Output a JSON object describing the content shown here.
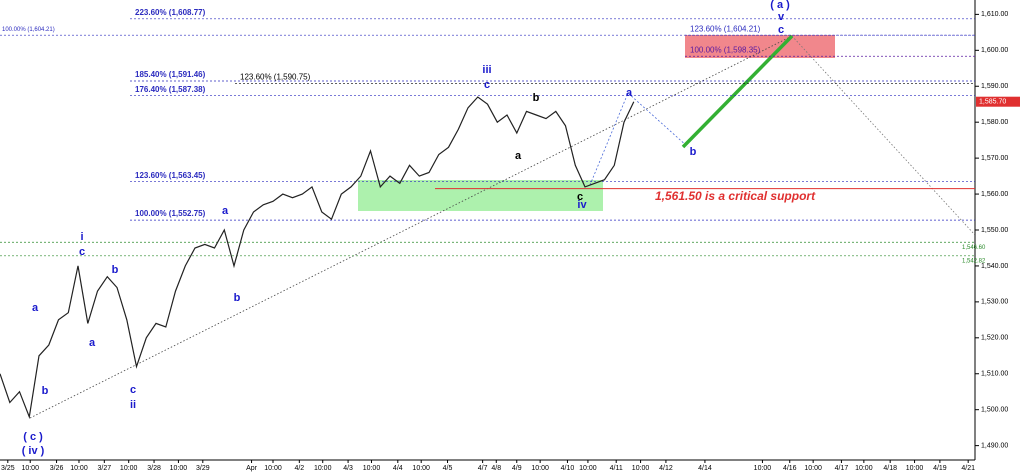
{
  "chart_data": {
    "type": "line",
    "color": "#222222",
    "x": [
      0,
      1,
      2,
      3,
      4,
      5,
      6,
      7,
      8,
      9,
      10,
      11,
      12,
      13,
      14,
      15,
      16,
      17,
      18,
      19,
      20,
      21,
      22,
      23,
      24,
      25,
      26,
      27,
      28,
      29,
      30,
      31,
      32,
      33,
      34,
      35,
      36,
      37,
      38,
      39,
      40,
      41,
      42,
      43,
      44,
      45,
      46,
      47,
      48,
      49,
      50,
      51,
      52,
      53,
      54,
      55,
      56,
      57,
      58,
      59,
      60,
      61,
      62,
      63,
      64,
      65
    ],
    "values": [
      1510,
      1502,
      1505,
      1498,
      1515,
      1518,
      1525,
      1527,
      1540,
      1524,
      1533,
      1537,
      1534,
      1525,
      1512,
      1520,
      1524,
      1523,
      1533,
      1540,
      1545,
      1546,
      1545,
      1550,
      1540,
      1550,
      1555,
      1557,
      1558,
      1560,
      1559,
      1560,
      1562,
      1555,
      1553,
      1560,
      1562,
      1565,
      1572,
      1562,
      1565,
      1563,
      1568,
      1565,
      1566,
      1571,
      1573,
      1578,
      1584,
      1587,
      1585,
      1580,
      1582,
      1577,
      1583,
      1582,
      1581,
      1583,
      1579,
      1568,
      1562,
      1563,
      1564,
      1568,
      1580,
      1585.7
    ],
    "xlim": [
      0,
      100
    ],
    "xticks": [
      {
        "value": 0.8,
        "label": "3/25"
      },
      {
        "value": 3.1,
        "label": "10:00"
      },
      {
        "value": 5.8,
        "label": "3/26"
      },
      {
        "value": 8.1,
        "label": "10:00"
      },
      {
        "value": 10.7,
        "label": "3/27"
      },
      {
        "value": 13.2,
        "label": "10:00"
      },
      {
        "value": 15.8,
        "label": "3/28"
      },
      {
        "value": 18.3,
        "label": "10:00"
      },
      {
        "value": 20.8,
        "label": "3/29"
      },
      {
        "value": 25.8,
        "label": "Apr"
      },
      {
        "value": 28.0,
        "label": "10:00"
      },
      {
        "value": 30.7,
        "label": "4/2"
      },
      {
        "value": 33.1,
        "label": "10:00"
      },
      {
        "value": 35.7,
        "label": "4/3"
      },
      {
        "value": 38.1,
        "label": "10:00"
      },
      {
        "value": 40.8,
        "label": "4/4"
      },
      {
        "value": 43.2,
        "label": "10:00"
      },
      {
        "value": 45.9,
        "label": "4/5"
      },
      {
        "value": 49.5,
        "label": "4/7"
      },
      {
        "value": 50.9,
        "label": "4/8"
      },
      {
        "value": 53.0,
        "label": "4/9"
      },
      {
        "value": 55.4,
        "label": "10:00"
      },
      {
        "value": 58.2,
        "label": "4/10"
      },
      {
        "value": 60.3,
        "label": "10:00"
      },
      {
        "value": 63.2,
        "label": "4/11"
      },
      {
        "value": 65.7,
        "label": "10:00"
      },
      {
        "value": 68.3,
        "label": "4/12"
      },
      {
        "value": 72.3,
        "label": "4/14"
      },
      {
        "value": 78.2,
        "label": "10:00"
      },
      {
        "value": 81.0,
        "label": "4/16"
      },
      {
        "value": 83.4,
        "label": "10:00"
      },
      {
        "value": 86.3,
        "label": "4/17"
      },
      {
        "value": 88.6,
        "label": "10:00"
      },
      {
        "value": 91.3,
        "label": "4/18"
      },
      {
        "value": 93.8,
        "label": "10:00"
      },
      {
        "value": 96.4,
        "label": "4/19"
      },
      {
        "value": 99.3,
        "label": "4/21"
      }
    ],
    "ylim": [
      1486,
      1614
    ],
    "yticks": [
      {
        "value": 1490,
        "label": "1,490.00"
      },
      {
        "value": 1500,
        "label": "1,500.00"
      },
      {
        "value": 1510,
        "label": "1,510.00"
      },
      {
        "value": 1520,
        "label": "1,520.00"
      },
      {
        "value": 1530,
        "label": "1,530.00"
      },
      {
        "value": 1540,
        "label": "1,540.00"
      },
      {
        "value": 1550,
        "label": "1,550.00"
      },
      {
        "value": 1560,
        "label": "1,560.00"
      },
      {
        "value": 1570,
        "label": "1,570.00"
      },
      {
        "value": 1580,
        "label": "1,580.00"
      },
      {
        "value": 1590,
        "label": "1,590.00"
      },
      {
        "value": 1600,
        "label": "1,600.00"
      },
      {
        "value": 1610,
        "label": "1,610.00"
      }
    ],
    "grid": false,
    "last_price": {
      "value": 1585.7,
      "label": "1,585.70",
      "color": "#e03030"
    },
    "levels": [
      {
        "value": 1608.77,
        "label": "223.60% (1,608.77)",
        "color": "#2b2bbf"
      },
      {
        "value": 1604.21,
        "label": "100.00% (1,604.21)",
        "color": "#2b2bbf"
      },
      {
        "value": 1604.21,
        "label": "123.60% (1,604.21)",
        "color": "#2b2bbf"
      },
      {
        "value": 1598.35,
        "label": "100.00% (1,598.35)",
        "color": "#5a1aa0"
      },
      {
        "value": 1591.46,
        "label": "185.40% (1,591.46)",
        "color": "#2b2bbf"
      },
      {
        "value": 1590.75,
        "label": "123.60% (1,590.75)",
        "color": "#000000"
      },
      {
        "value": 1587.38,
        "label": "176.40% (1,587.38)",
        "color": "#2b2bbf"
      },
      {
        "value": 1563.45,
        "label": "123.60% (1,563.45)",
        "color": "#2b2bbf"
      },
      {
        "value": 1552.75,
        "label": "100.00% (1,552.75)",
        "color": "#2b2bbf"
      },
      {
        "value": 1546.6,
        "label": "1,546.60",
        "color": "#2a8a2a"
      },
      {
        "value": 1542.82,
        "label": "1,542.82",
        "color": "#2a8a2a"
      },
      {
        "value": 1561.5,
        "label": "1,561.50 is a critical support",
        "color": "#e03030"
      }
    ],
    "annotations": [
      {
        "text": "( a )",
        "color": "#1a1acc"
      },
      {
        "text": "v",
        "color": "#1a1acc"
      },
      {
        "text": "c",
        "color": "#1a1acc"
      },
      {
        "text": "a",
        "color": "#1a1acc"
      },
      {
        "text": "b",
        "color": "#1a1acc"
      },
      {
        "text": "( c )",
        "color": "#1a1acc"
      },
      {
        "text": "( iv )",
        "color": "#1a1acc"
      },
      {
        "text": "i",
        "color": "#1a1acc"
      },
      {
        "text": "c",
        "color": "#1a1acc"
      },
      {
        "text": "b",
        "color": "#1a1acc"
      },
      {
        "text": "a",
        "color": "#1a1acc"
      },
      {
        "text": "c",
        "color": "#1a1acc"
      },
      {
        "text": "ii",
        "color": "#1a1acc"
      },
      {
        "text": "a",
        "color": "#1a1acc"
      },
      {
        "text": "b",
        "color": "#1a1acc"
      },
      {
        "text": "iii",
        "color": "#1a1acc"
      },
      {
        "text": "c",
        "color": "#1a1acc"
      },
      {
        "text": "b",
        "color": "#000000"
      },
      {
        "text": "a",
        "color": "#000000"
      },
      {
        "text": "a",
        "color": "#1a1acc"
      },
      {
        "text": "b",
        "color": "#1a1acc"
      },
      {
        "text": "c",
        "color": "#000000"
      },
      {
        "text": "iv",
        "color": "#1a1acc"
      }
    ]
  }
}
